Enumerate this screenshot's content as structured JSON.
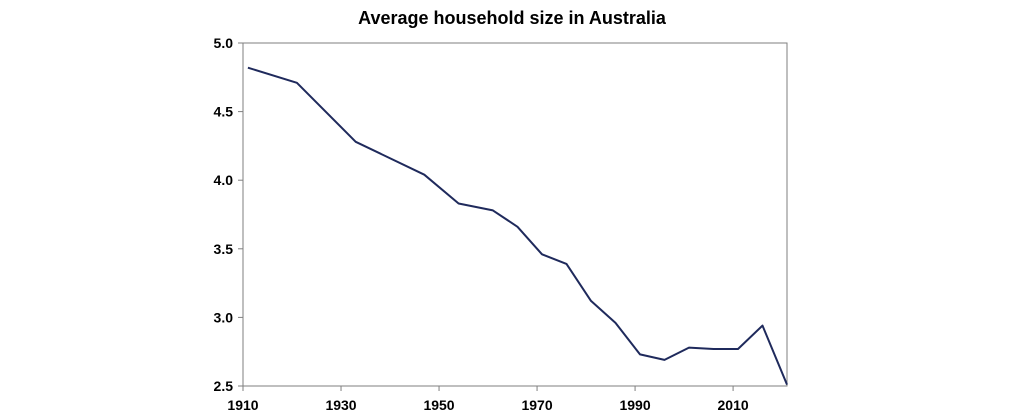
{
  "chart_data": {
    "type": "line",
    "title": "Average household size in Australia",
    "xlabel": "",
    "ylabel": "",
    "xlim": [
      1910,
      2021
    ],
    "ylim": [
      2.5,
      5.0
    ],
    "x_ticks": [
      1910,
      1930,
      1950,
      1970,
      1990,
      2010
    ],
    "x_tick_labels": [
      "1910",
      "1930",
      "1950",
      "1970",
      "1990",
      "2010"
    ],
    "y_ticks": [
      2.5,
      3.0,
      3.5,
      4.0,
      4.5,
      5.0
    ],
    "y_tick_labels": [
      "2.5",
      "3.0",
      "3.5",
      "4.0",
      "4.5",
      "5.0"
    ],
    "grid": false,
    "legend": "none",
    "line_color": "#1f2a5c",
    "series": [
      {
        "x": [
          1911,
          1921,
          1933,
          1947,
          1954,
          1961,
          1966,
          1971,
          1976,
          1981,
          1986,
          1991,
          1996,
          2001,
          2006,
          2011,
          2016,
          2021
        ],
        "values": [
          4.82,
          4.71,
          4.28,
          4.04,
          3.83,
          3.78,
          3.66,
          3.46,
          3.39,
          3.12,
          2.96,
          2.73,
          2.69,
          2.78,
          2.77,
          2.77,
          2.94,
          2.51
        ]
      }
    ]
  }
}
